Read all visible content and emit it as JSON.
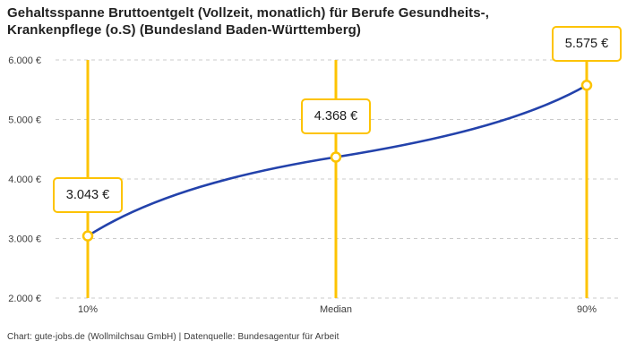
{
  "title_lines": [
    "Gehaltsspanne Bruttoentgelt (Vollzeit, monatlich) für Berufe Gesundheits-,",
    "Krankenpflege (o.S) (Bundesland Baden-Württemberg)"
  ],
  "chart_data": {
    "type": "line",
    "title": "Gehaltsspanne Bruttoentgelt (Vollzeit, monatlich) für Berufe Gesundheits-, Krankenpflege (o.S) (Bundesland Baden-Württemberg)",
    "categories": [
      "10%",
      "Median",
      "90%"
    ],
    "values": [
      3043,
      4368,
      5575
    ],
    "point_labels": [
      "3.043 €",
      "4.368 €",
      "5.575 €"
    ],
    "ylim": [
      2000,
      6000
    ],
    "yticks": [
      {
        "value": 6000,
        "label": "6.000 €"
      },
      {
        "value": 5000,
        "label": "5.000 €"
      },
      {
        "value": 4000,
        "label": "4.000 €"
      },
      {
        "value": 3000,
        "label": "3.000 €"
      },
      {
        "value": 2000,
        "label": "2.000 €"
      }
    ],
    "grid": "horizontal-dashed",
    "legend": "none",
    "colors": {
      "line": "#2342ab",
      "vline": "#fdc300",
      "marker_stroke": "#fdc300",
      "marker_fill": "#ffffff",
      "grid": "#cbcbcb",
      "axis_text": "#3c3c3c",
      "label_box_border": "#fdc300",
      "label_box_bg": "#ffffff",
      "title_text": "#222222"
    }
  },
  "footer": {
    "credit": "Chart: gute-jobs.de (Wollmilchsau GmbH) | Datenquelle: Bundesagentur für Arbeit"
  }
}
